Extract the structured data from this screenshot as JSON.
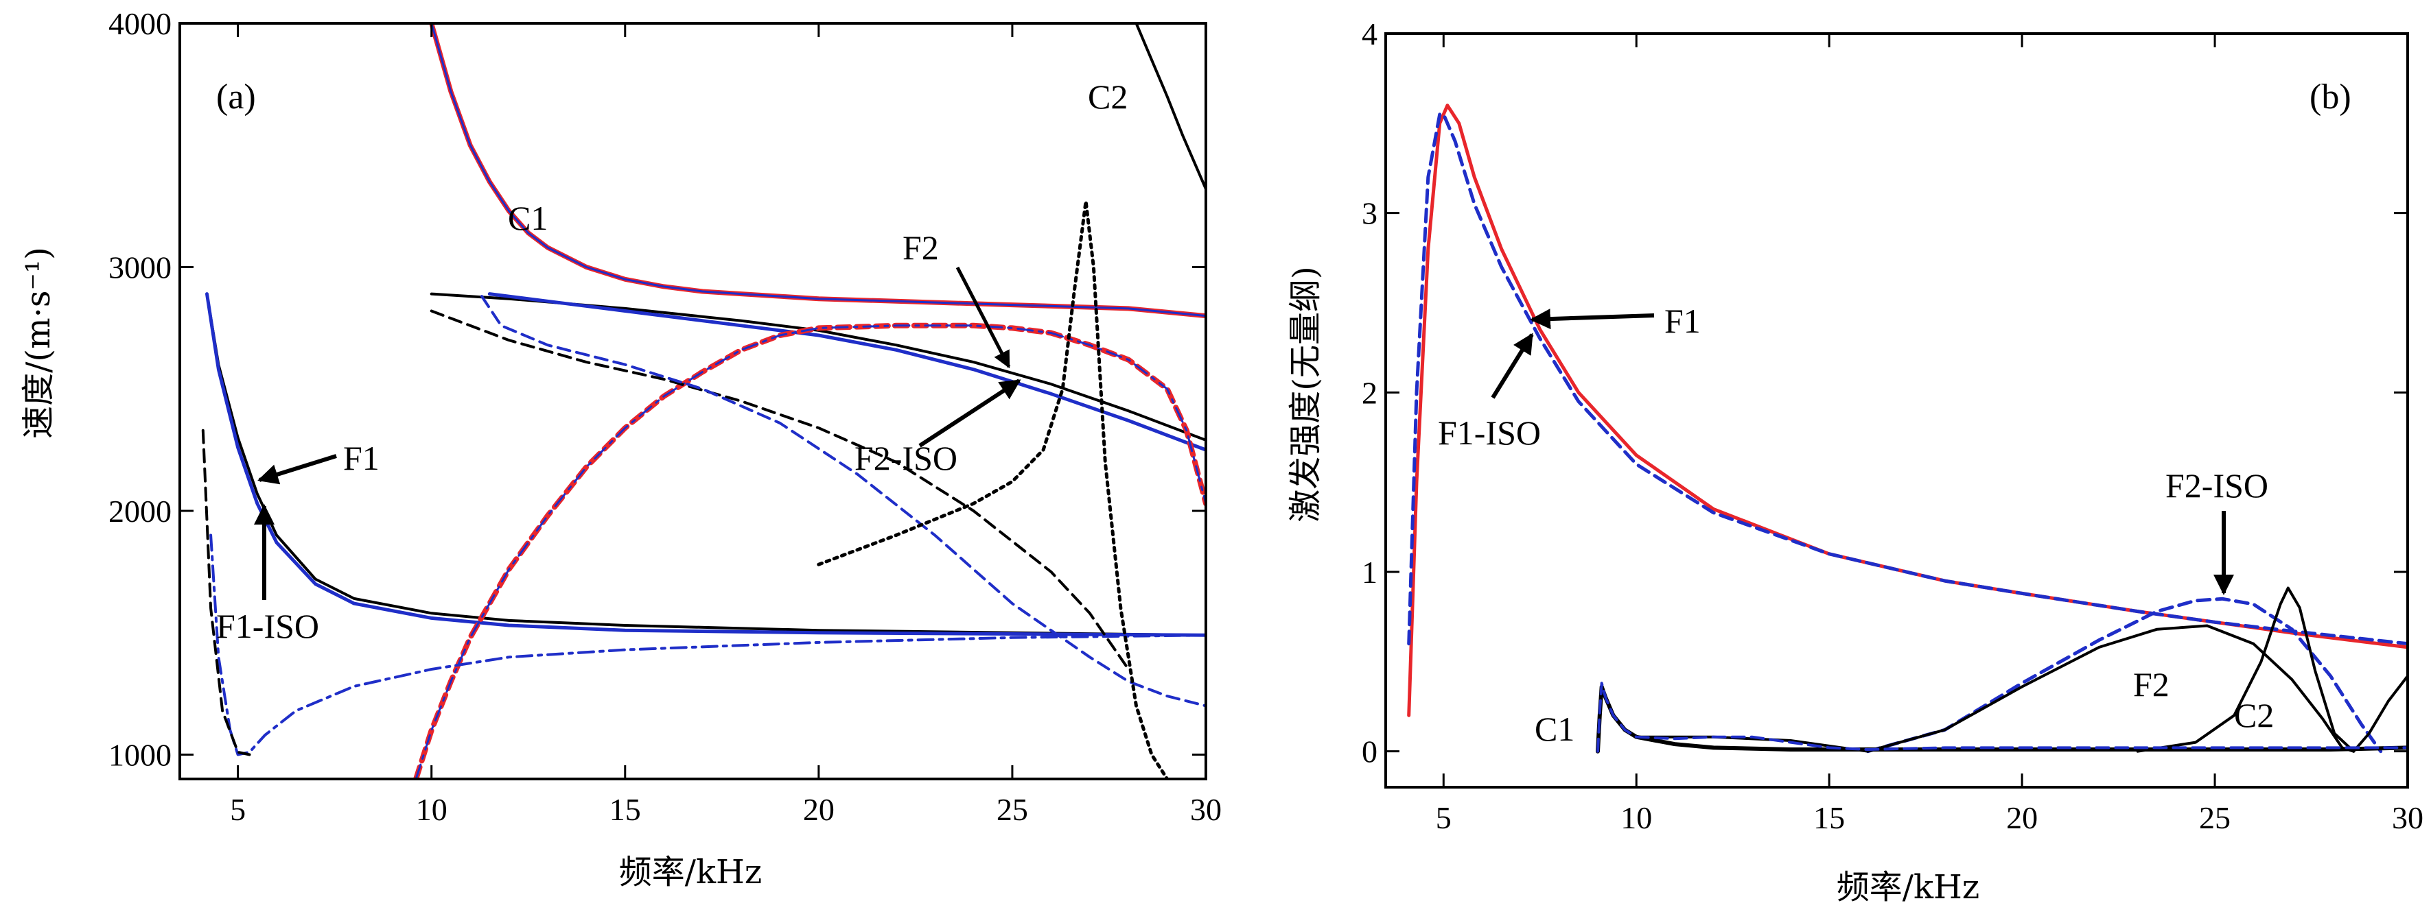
{
  "chart_data": [
    {
      "type": "line",
      "panel_label": "(a)",
      "xlabel": "频率/kHz",
      "ylabel": "速度/(m·s⁻¹)",
      "xlim": [
        3.5,
        30
      ],
      "ylim": [
        900,
        4000
      ],
      "xticks": [
        5,
        10,
        15,
        20,
        25,
        30
      ],
      "xtick_labels": [
        "5",
        "10",
        "15",
        "20",
        "25",
        "30"
      ],
      "yticks": [
        1000,
        2000,
        3000,
        4000
      ],
      "ytick_labels": [
        "1000",
        "2000",
        "3000",
        "4000"
      ],
      "series": [
        {
          "name": "C1 (red)",
          "color": "#e8262b",
          "style": "solid",
          "width": 7,
          "x": [
            10.0,
            10.5,
            11.0,
            11.5,
            12.0,
            12.5,
            13.0,
            14.0,
            15.0,
            16.0,
            17.0,
            18.0,
            20.0,
            22.0,
            25.0,
            28.0,
            30.0
          ],
          "y": [
            4000,
            3720,
            3500,
            3350,
            3230,
            3140,
            3080,
            3000,
            2950,
            2920,
            2900,
            2890,
            2870,
            2860,
            2845,
            2830,
            2800
          ]
        },
        {
          "name": "C1 (blue)",
          "color": "#1f2ec8",
          "style": "solid",
          "width": 3,
          "x": [
            10.0,
            10.5,
            11.0,
            11.5,
            12.0,
            12.5,
            13.0,
            14.0,
            15.0,
            16.0,
            17.0,
            18.0,
            20.0,
            22.0,
            25.0,
            28.0,
            30.0
          ],
          "y": [
            4000,
            3720,
            3500,
            3350,
            3230,
            3140,
            3080,
            3000,
            2950,
            2920,
            2900,
            2890,
            2870,
            2860,
            2845,
            2830,
            2800
          ]
        },
        {
          "name": "F1",
          "color": "#000000",
          "style": "solid",
          "width": 4,
          "x": [
            4.2,
            4.5,
            5.0,
            5.5,
            6.0,
            7.0,
            8.0,
            10.0,
            12.0,
            15.0,
            20.0,
            25.0,
            30.0
          ],
          "y": [
            2890,
            2600,
            2300,
            2070,
            1900,
            1720,
            1640,
            1580,
            1550,
            1530,
            1510,
            1500,
            1490
          ]
        },
        {
          "name": "F1-ISO",
          "color": "#1f2ec8",
          "style": "solid",
          "width": 5,
          "x": [
            4.2,
            4.5,
            5.0,
            5.5,
            6.0,
            7.0,
            8.0,
            10.0,
            12.0,
            15.0,
            20.0,
            25.0,
            30.0
          ],
          "y": [
            2890,
            2580,
            2260,
            2030,
            1870,
            1700,
            1620,
            1560,
            1530,
            1510,
            1500,
            1495,
            1490
          ]
        },
        {
          "name": "F2",
          "color": "#000000",
          "style": "solid",
          "width": 4,
          "x": [
            10.0,
            12.0,
            15.0,
            18.0,
            20.0,
            22.0,
            24.0,
            26.0,
            28.0,
            30.0
          ],
          "y": [
            2890,
            2870,
            2830,
            2780,
            2740,
            2680,
            2610,
            2520,
            2410,
            2290
          ]
        },
        {
          "name": "F2-ISO",
          "color": "#1f2ec8",
          "style": "solid",
          "width": 5,
          "x": [
            11.5,
            13.0,
            15.0,
            18.0,
            20.0,
            22.0,
            24.0,
            26.0,
            28.0,
            30.0
          ],
          "y": [
            2890,
            2860,
            2820,
            2760,
            2720,
            2660,
            2580,
            2480,
            2370,
            2250
          ]
        },
        {
          "name": "C2",
          "color": "#000000",
          "style": "solid",
          "width": 4,
          "x": [
            28.2,
            28.6,
            29.0,
            29.4,
            29.7,
            30.0
          ],
          "y": [
            4000,
            3850,
            3700,
            3540,
            3430,
            3320
          ]
        },
        {
          "name": "red dash-dot",
          "color": "#e8262b",
          "style": "dashed",
          "width": 8,
          "x": [
            9.6,
            10.0,
            10.5,
            11.0,
            12.0,
            13.0,
            14.0,
            15.0,
            16.0,
            17.0,
            18.0,
            19.0,
            20.0,
            22.0,
            24.0,
            25.0,
            26.0,
            27.0,
            28.0,
            29.0,
            29.5,
            30.0
          ],
          "y": [
            900,
            1100,
            1300,
            1480,
            1760,
            1980,
            2180,
            2340,
            2470,
            2570,
            2660,
            2720,
            2750,
            2760,
            2760,
            2750,
            2730,
            2680,
            2620,
            2500,
            2330,
            2030
          ]
        },
        {
          "name": "blue dash-dot overlay",
          "color": "#1f2ec8",
          "style": "dashdot",
          "width": 3,
          "x": [
            9.6,
            10.0,
            10.5,
            11.0,
            12.0,
            13.0,
            14.0,
            15.0,
            16.0,
            17.0,
            18.0,
            19.0,
            20.0,
            22.0,
            24.0,
            25.0,
            26.0,
            27.0,
            28.0,
            29.0,
            29.5,
            30.0
          ],
          "y": [
            900,
            1100,
            1300,
            1480,
            1760,
            1980,
            2180,
            2340,
            2470,
            2570,
            2660,
            2720,
            2750,
            2760,
            2760,
            2750,
            2730,
            2680,
            2620,
            2500,
            2330,
            2030
          ]
        },
        {
          "name": "blue dash-dot low",
          "color": "#1f2ec8",
          "style": "dashdot",
          "width": 4,
          "x": [
            4.3,
            4.5,
            4.8,
            5.0,
            5.3,
            5.7,
            6.5,
            8.0,
            10.0,
            12.0,
            15.0,
            20.0,
            25.0,
            30.0
          ],
          "y": [
            1900,
            1400,
            1100,
            1000,
            1010,
            1080,
            1180,
            1280,
            1350,
            1400,
            1430,
            1460,
            1480,
            1490
          ]
        },
        {
          "name": "black dashed low",
          "color": "#000000",
          "style": "dashed",
          "width": 4,
          "x": [
            4.1,
            4.3,
            4.6,
            5.0,
            5.3
          ],
          "y": [
            2330,
            1600,
            1180,
            1010,
            1000
          ]
        },
        {
          "name": "black dashed descending",
          "color": "#000000",
          "style": "dashed",
          "width": 4,
          "x": [
            10.0,
            12.0,
            14.0,
            16.0,
            18.0,
            20.0,
            22.0,
            24.0,
            26.0,
            27.0,
            28.0
          ],
          "y": [
            2820,
            2700,
            2610,
            2540,
            2450,
            2340,
            2200,
            2000,
            1750,
            1580,
            1350
          ]
        },
        {
          "name": "blue dashed descending",
          "color": "#1f2ec8",
          "style": "dashed",
          "width": 4,
          "x": [
            11.3,
            11.8,
            13.0,
            15.0,
            17.0,
            19.0,
            21.0,
            23.0,
            25.0,
            27.0,
            28.0,
            29.0,
            30.0
          ],
          "y": [
            2880,
            2760,
            2680,
            2600,
            2500,
            2360,
            2150,
            1900,
            1620,
            1400,
            1300,
            1240,
            1200
          ]
        },
        {
          "name": "black dotted resonance",
          "color": "#000000",
          "style": "dotted",
          "width": 5,
          "x": [
            20.0,
            22.0,
            24.0,
            25.0,
            25.8,
            26.3,
            26.6,
            26.9,
            27.1,
            27.4,
            27.8,
            28.2,
            28.6,
            29.0
          ],
          "y": [
            1780,
            1900,
            2030,
            2120,
            2250,
            2500,
            2900,
            3270,
            3000,
            2200,
            1600,
            1200,
            1000,
            900
          ]
        }
      ],
      "annotations": [
        {
          "text": "C1"
        },
        {
          "text": "C2"
        },
        {
          "text": "F1"
        },
        {
          "text": "F1-ISO"
        },
        {
          "text": "F2"
        },
        {
          "text": "F2-ISO"
        }
      ]
    },
    {
      "type": "line",
      "panel_label": "(b)",
      "xlabel": "频率/kHz",
      "ylabel": "激发强度(无量纲)",
      "xlim": [
        3.5,
        30
      ],
      "ylim": [
        -0.2,
        4
      ],
      "xticks": [
        5,
        10,
        15,
        20,
        25,
        30
      ],
      "xtick_labels": [
        "5",
        "10",
        "15",
        "20",
        "25",
        "30"
      ],
      "yticks": [
        0,
        1,
        2,
        3,
        4
      ],
      "ytick_labels": [
        "0",
        "1",
        "2",
        "3",
        "4"
      ],
      "series": [
        {
          "name": "F1",
          "color": "#e8262b",
          "style": "solid",
          "width": 5,
          "x": [
            4.1,
            4.3,
            4.6,
            4.9,
            5.1,
            5.4,
            5.8,
            6.5,
            7.5,
            8.5,
            10.0,
            12.0,
            15.0,
            18.0,
            20.0,
            23.0,
            25.0,
            27.0,
            30.0
          ],
          "y": [
            0.2,
            1.5,
            2.8,
            3.5,
            3.6,
            3.5,
            3.2,
            2.8,
            2.35,
            2.0,
            1.65,
            1.35,
            1.1,
            0.95,
            0.88,
            0.78,
            0.72,
            0.66,
            0.58
          ]
        },
        {
          "name": "F1-ISO",
          "color": "#1f2ec8",
          "style": "dashed",
          "width": 5,
          "x": [
            4.1,
            4.3,
            4.6,
            4.9,
            5.0,
            5.3,
            5.8,
            6.5,
            7.5,
            8.5,
            10.0,
            12.0,
            15.0,
            18.0,
            20.0,
            23.0,
            25.0,
            27.0,
            30.0
          ],
          "y": [
            0.6,
            2.0,
            3.2,
            3.55,
            3.55,
            3.4,
            3.05,
            2.7,
            2.3,
            1.95,
            1.6,
            1.33,
            1.1,
            0.95,
            0.88,
            0.78,
            0.72,
            0.67,
            0.6
          ]
        },
        {
          "name": "F2-ISO",
          "color": "#1f2ec8",
          "style": "dashed",
          "width": 5,
          "x": [
            16.0,
            18.0,
            20.0,
            22.0,
            23.5,
            24.5,
            25.2,
            26.0,
            27.0,
            28.0,
            28.8,
            29.3
          ],
          "y": [
            0.0,
            0.12,
            0.38,
            0.62,
            0.78,
            0.84,
            0.85,
            0.82,
            0.68,
            0.42,
            0.15,
            0.0
          ]
        },
        {
          "name": "F2",
          "color": "#000000",
          "style": "solid",
          "width": 4,
          "x": [
            10.0,
            12.0,
            14.0,
            16.0,
            18.0,
            20.0,
            22.0,
            23.5,
            24.8,
            26.0,
            27.0,
            27.8,
            28.3,
            28.6
          ],
          "y": [
            0.08,
            0.08,
            0.06,
            0.0,
            0.12,
            0.36,
            0.58,
            0.68,
            0.7,
            0.6,
            0.4,
            0.18,
            0.02,
            0.0
          ]
        },
        {
          "name": "C2",
          "color": "#000000",
          "style": "solid",
          "width": 4,
          "x": [
            23.0,
            24.5,
            25.5,
            26.2,
            26.7,
            26.9,
            27.2,
            27.6,
            28.1,
            28.6,
            29.0,
            29.5,
            30.0
          ],
          "y": [
            0.0,
            0.05,
            0.2,
            0.5,
            0.82,
            0.91,
            0.8,
            0.45,
            0.1,
            0.0,
            0.1,
            0.28,
            0.42
          ]
        },
        {
          "name": "C1",
          "color": "#000000",
          "style": "solid",
          "width": 6,
          "x": [
            9.0,
            9.05,
            9.1,
            9.2,
            9.4,
            9.7,
            10.0,
            11.0,
            12.0,
            14.0,
            16.0,
            18.0,
            20.0,
            22.0,
            25.0,
            28.0,
            30.0
          ],
          "y": [
            0.0,
            0.2,
            0.36,
            0.3,
            0.2,
            0.12,
            0.08,
            0.04,
            0.02,
            0.01,
            0.01,
            0.01,
            0.01,
            0.01,
            0.01,
            0.01,
            0.02
          ]
        },
        {
          "name": "C1 blue overlay",
          "color": "#1f2ec8",
          "style": "dashed",
          "width": 4,
          "x": [
            9.0,
            9.05,
            9.1,
            9.2,
            9.4,
            9.7,
            10.0,
            11.0,
            12.0,
            13.0,
            14.0,
            15.0,
            16.0,
            18.0,
            20.0,
            25.0,
            30.0
          ],
          "y": [
            0.0,
            0.22,
            0.38,
            0.3,
            0.2,
            0.12,
            0.08,
            0.07,
            0.08,
            0.08,
            0.05,
            0.02,
            0.01,
            0.02,
            0.02,
            0.02,
            0.02
          ]
        }
      ],
      "annotations": [
        {
          "text": "F1"
        },
        {
          "text": "F1-ISO"
        },
        {
          "text": "F2-ISO"
        },
        {
          "text": "F2"
        },
        {
          "text": "C1"
        },
        {
          "text": "C2"
        }
      ]
    }
  ]
}
